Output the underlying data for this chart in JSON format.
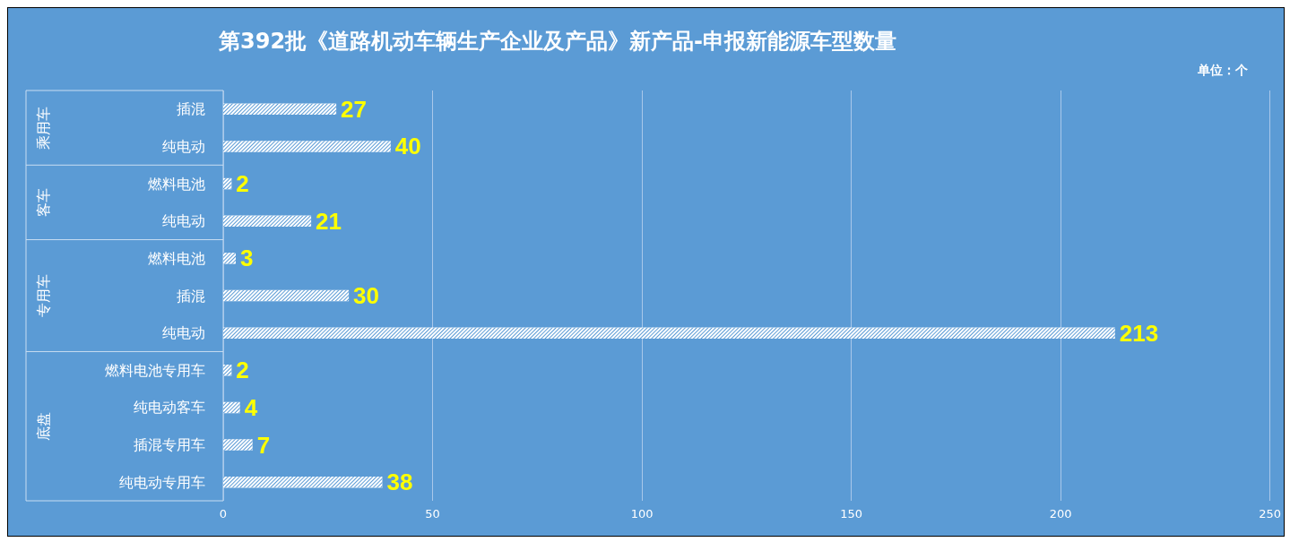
{
  "chart_data": {
    "type": "bar",
    "orientation": "horizontal",
    "title": "第392批《道路机动车辆生产企业及产品》新产品-申报新能源车型数量",
    "categories": [
      "插混",
      "纯电动",
      "燃料电池",
      "纯电动",
      "燃料电池",
      "插混",
      "纯电动",
      "燃料电池专用车",
      "纯电动客车",
      "插混专用车",
      "纯电动专用车"
    ],
    "values": [
      27,
      40,
      2,
      21,
      3,
      30,
      213,
      2,
      4,
      7,
      38
    ],
    "color": "#ffffff",
    "data_labels": true,
    "xlim": [
      0,
      250
    ],
    "xticks": [
      0,
      50,
      100,
      150,
      200,
      250
    ],
    "grid": "x",
    "annotations": [
      "单位：个",
      "乘用车",
      "客车",
      "专用车",
      "底盘"
    ]
  }
}
